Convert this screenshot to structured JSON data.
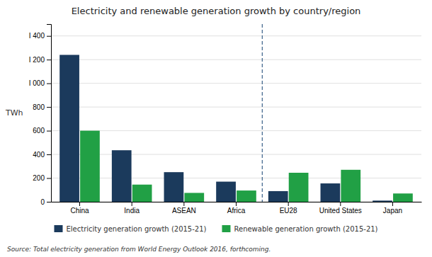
{
  "chart_data": {
    "type": "bar",
    "title": "Electricity and renewable generation growth by country/region",
    "categories": [
      "China",
      "India",
      "ASEAN",
      "Africa",
      "EU28",
      "United States",
      "Japan"
    ],
    "series": [
      {
        "name": "Electricity generation growth (2015-21)",
        "color": "#1b3a5c",
        "values": [
          1240,
          435,
          250,
          170,
          90,
          155,
          10
        ]
      },
      {
        "name": "Renewable generation growth (2015-21)",
        "color": "#21a045",
        "values": [
          600,
          145,
          75,
          95,
          245,
          270,
          70
        ]
      }
    ],
    "ylabel": "TWh",
    "ylim": [
      0,
      1500
    ],
    "yticks": [
      0,
      200,
      400,
      600,
      800,
      {
        "value": 1000,
        "label": "I 000"
      },
      {
        "value": 1200,
        "label": "I 200"
      },
      {
        "value": 1400,
        "label": "I 400"
      }
    ],
    "grid": true,
    "legend": "bottom",
    "source": "Source: Total electricity generation from World Energy Outlook 2016, forthcoming."
  }
}
